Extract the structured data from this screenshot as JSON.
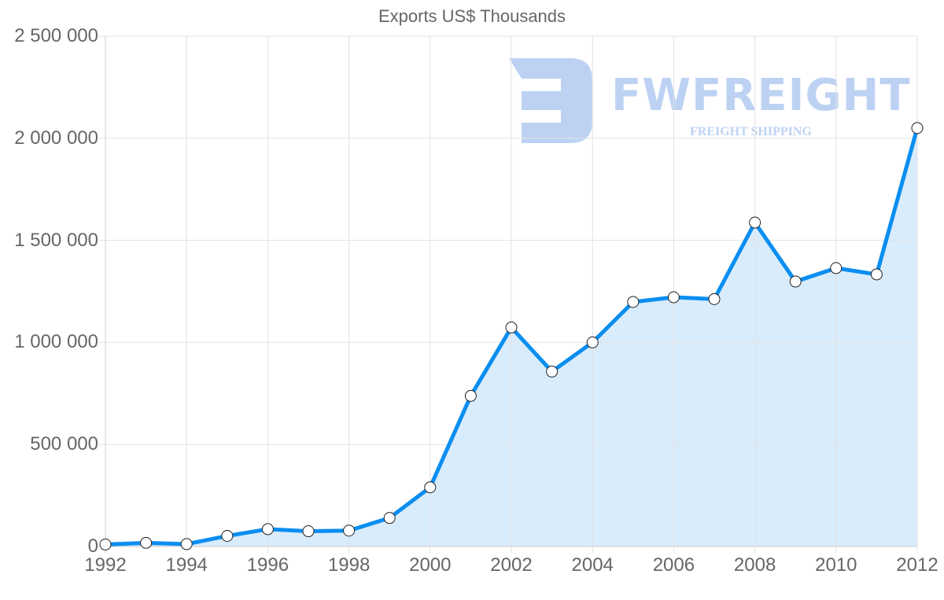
{
  "title": "Exports US$ Thousands",
  "watermark": {
    "brand": "FWFREIGHT",
    "tagline": "FREIGHT SHIPPING"
  },
  "y_ticks": [
    "0",
    "500 000",
    "1 000 000",
    "1 500 000",
    "2 000 000",
    "2 500 000"
  ],
  "x_ticks": [
    "1992",
    "1994",
    "1996",
    "1998",
    "2000",
    "2002",
    "2004",
    "2006",
    "2008",
    "2010",
    "2012"
  ],
  "colors": {
    "line": "#0a8ef0",
    "fill": "#d9ecfc",
    "grid": "#e2e2e2",
    "axis": "#cccccc",
    "text": "#666666",
    "marker_fill": "#ffffff",
    "marker_stroke": "#222222"
  },
  "chart_data": {
    "type": "area",
    "title": "Exports US$ Thousands",
    "xlabel": "",
    "ylabel": "",
    "x": [
      1992,
      1993,
      1994,
      1995,
      1996,
      1997,
      1998,
      1999,
      2000,
      2001,
      2002,
      2003,
      2004,
      2005,
      2006,
      2007,
      2008,
      2009,
      2010,
      2011,
      2012
    ],
    "series": [
      {
        "name": "Exports US$ Thousands",
        "values": [
          10000,
          18000,
          12000,
          52000,
          85000,
          75000,
          78000,
          140000,
          290000,
          738000,
          1073000,
          857000,
          1000000,
          1198000,
          1221000,
          1212000,
          1587000,
          1298000,
          1364000,
          1333000,
          2050000
        ]
      }
    ],
    "ylim": [
      0,
      2500000
    ],
    "xlim": [
      1992,
      2012
    ],
    "y_tick_step": 500000,
    "x_tick_step": 2,
    "grid": true,
    "legend": "none",
    "markers": "open-circle"
  }
}
